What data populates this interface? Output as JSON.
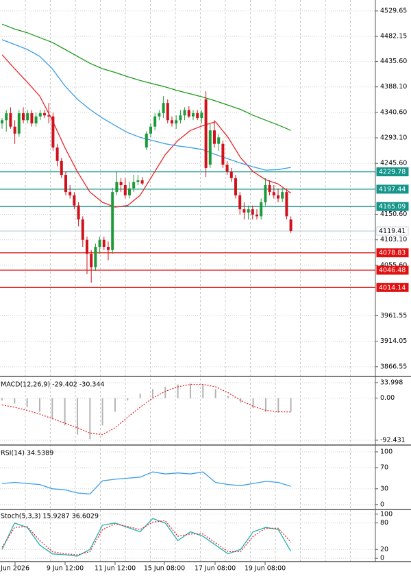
{
  "chart_data": [
    {
      "type": "candlestick",
      "up_color": "#1f9a3a",
      "down_color": "#d0121b",
      "ylim": [
        3849.7,
        4550
      ],
      "yticks": [
        4529.65,
        4482.15,
        {
          "value": 4435.6,
          "label": "4435.60"
        },
        {
          "value": 4388.1,
          "label": "4388.10"
        },
        {
          "value": 4340.6,
          "label": "4340.60"
        },
        {
          "value": 4293.1,
          "label": "4293.10"
        },
        {
          "value": 4245.6,
          "label": "4245.60"
        },
        {
          "value": 4150.6,
          "label": "4150.60"
        },
        {
          "value": 4103.1,
          "label": "4103.10"
        },
        {
          "value": 4055.6,
          "label": "4055.60"
        },
        3961.55,
        3914.05,
        3866.55
      ],
      "grid": true,
      "candles": [
        {
          "open": 4320,
          "high": 4330,
          "low": 4310,
          "close": 4326
        },
        {
          "open": 4326,
          "high": 4345,
          "low": 4305,
          "close": 4339
        },
        {
          "open": 4339,
          "high": 4350,
          "low": 4310,
          "close": 4314
        },
        {
          "open": 4314,
          "high": 4326,
          "low": 4282,
          "close": 4301
        },
        {
          "open": 4301,
          "high": 4345,
          "low": 4295,
          "close": 4339
        },
        {
          "open": 4339,
          "high": 4350,
          "low": 4320,
          "close": 4326
        },
        {
          "open": 4326,
          "high": 4345,
          "low": 4320,
          "close": 4339
        },
        {
          "open": 4339,
          "high": 4345,
          "low": 4314,
          "close": 4320
        },
        {
          "open": 4320,
          "high": 4340,
          "low": 4314,
          "close": 4333
        },
        {
          "open": 4333,
          "high": 4345,
          "low": 4326,
          "close": 4339
        },
        {
          "open": 4339,
          "high": 4345,
          "low": 4330,
          "close": 4335
        },
        {
          "open": 4335,
          "high": 4358,
          "low": 4320,
          "close": 4333
        },
        {
          "open": 4333,
          "high": 4340,
          "low": 4269,
          "close": 4275
        },
        {
          "open": 4275,
          "high": 4282,
          "low": 4240,
          "close": 4250
        },
        {
          "open": 4250,
          "high": 4256,
          "low": 4218,
          "close": 4224
        },
        {
          "open": 4224,
          "high": 4230,
          "low": 4186,
          "close": 4192
        },
        {
          "open": 4192,
          "high": 4205,
          "low": 4180,
          "close": 4186
        },
        {
          "open": 4186,
          "high": 4192,
          "low": 4160,
          "close": 4167
        },
        {
          "open": 4167,
          "high": 4173,
          "low": 4128,
          "close": 4141
        },
        {
          "open": 4141,
          "high": 4147,
          "low": 4090,
          "close": 4103
        },
        {
          "open": 4103,
          "high": 4109,
          "low": 4039,
          "close": 4077
        },
        {
          "open": 4077,
          "high": 4084,
          "low": 4023,
          "close": 4052
        },
        {
          "open": 4052,
          "high": 4096,
          "low": 4045,
          "close": 4090
        },
        {
          "open": 4090,
          "high": 4109,
          "low": 4077,
          "close": 4103
        },
        {
          "open": 4103,
          "high": 4109,
          "low": 4084,
          "close": 4090
        },
        {
          "open": 4090,
          "high": 4100,
          "low": 4065,
          "close": 4084
        },
        {
          "open": 4084,
          "high": 4200,
          "low": 4077,
          "close": 4192
        },
        {
          "open": 4192,
          "high": 4230,
          "low": 4186,
          "close": 4211
        },
        {
          "open": 4211,
          "high": 4218,
          "low": 4192,
          "close": 4205
        },
        {
          "open": 4205,
          "high": 4218,
          "low": 4180,
          "close": 4186
        },
        {
          "open": 4186,
          "high": 4211,
          "low": 4180,
          "close": 4199
        },
        {
          "open": 4199,
          "high": 4224,
          "low": 4192,
          "close": 4211
        },
        {
          "open": 4211,
          "high": 4224,
          "low": 4205,
          "close": 4214
        },
        {
          "open": 4214,
          "high": 4220,
          "low": 4205,
          "close": 4208
        },
        {
          "open": 4275,
          "high": 4305,
          "low": 4270,
          "close": 4301
        },
        {
          "open": 4301,
          "high": 4320,
          "low": 4294,
          "close": 4314
        },
        {
          "open": 4314,
          "high": 4339,
          "low": 4307,
          "close": 4333
        },
        {
          "open": 4333,
          "high": 4345,
          "low": 4326,
          "close": 4339
        },
        {
          "open": 4339,
          "high": 4371,
          "low": 4330,
          "close": 4358
        },
        {
          "open": 4358,
          "high": 4365,
          "low": 4320,
          "close": 4326
        },
        {
          "open": 4326,
          "high": 4333,
          "low": 4314,
          "close": 4320
        },
        {
          "open": 4320,
          "high": 4335,
          "low": 4310,
          "close": 4326
        },
        {
          "open": 4326,
          "high": 4345,
          "low": 4320,
          "close": 4335
        },
        {
          "open": 4335,
          "high": 4350,
          "low": 4326,
          "close": 4345
        },
        {
          "open": 4345,
          "high": 4352,
          "low": 4330,
          "close": 4333
        },
        {
          "open": 4333,
          "high": 4345,
          "low": 4326,
          "close": 4339
        },
        {
          "open": 4339,
          "high": 4345,
          "low": 4326,
          "close": 4330
        },
        {
          "open": 4330,
          "high": 4345,
          "low": 4320,
          "close": 4340
        },
        {
          "open": 4365,
          "high": 4380,
          "low": 4220,
          "close": 4237
        },
        {
          "open": 4243,
          "high": 4320,
          "low": 4237,
          "close": 4307
        },
        {
          "open": 4307,
          "high": 4326,
          "low": 4275,
          "close": 4282
        },
        {
          "open": 4282,
          "high": 4300,
          "low": 4269,
          "close": 4294
        },
        {
          "open": 4282,
          "high": 4288,
          "low": 4237,
          "close": 4243
        },
        {
          "open": 4243,
          "high": 4250,
          "low": 4224,
          "close": 4230
        },
        {
          "open": 4230,
          "high": 4237,
          "low": 4211,
          "close": 4218
        },
        {
          "open": 4218,
          "high": 4224,
          "low": 4180,
          "close": 4186
        },
        {
          "open": 4186,
          "high": 4192,
          "low": 4150,
          "close": 4160
        },
        {
          "open": 4160,
          "high": 4173,
          "low": 4141,
          "close": 4154
        },
        {
          "open": 4154,
          "high": 4167,
          "low": 4141,
          "close": 4160
        },
        {
          "open": 4160,
          "high": 4167,
          "low": 4141,
          "close": 4150
        },
        {
          "open": 4150,
          "high": 4160,
          "low": 4141,
          "close": 4147
        },
        {
          "open": 4147,
          "high": 4180,
          "low": 4141,
          "close": 4173
        },
        {
          "open": 4173,
          "high": 4218,
          "low": 4167,
          "close": 4205
        },
        {
          "open": 4205,
          "high": 4214,
          "low": 4186,
          "close": 4192
        },
        {
          "open": 4192,
          "high": 4205,
          "low": 4180,
          "close": 4186
        },
        {
          "open": 4186,
          "high": 4199,
          "low": 4173,
          "close": 4180
        },
        {
          "open": 4180,
          "high": 4200,
          "low": 4173,
          "close": 4192
        },
        {
          "open": 4192,
          "high": 4199,
          "low": 4141,
          "close": 4147
        },
        {
          "open": 4141,
          "high": 4147,
          "low": 4116,
          "close": 4119.41
        }
      ],
      "series": [
        {
          "color": "#e8262a",
          "values": [
            4448,
            4422,
            4397,
            4371,
            4326,
            4275,
            4230,
            4192,
            4173,
            4164,
            4167,
            4186,
            4224,
            4262,
            4288,
            4307,
            4316,
            4323,
            4294,
            4256,
            4230,
            4215,
            4207,
            4190
          ]
        },
        {
          "color": "#3a9de8",
          "values": [
            4476,
            4467,
            4458,
            4445,
            4422,
            4390,
            4365,
            4346,
            4330,
            4316,
            4303,
            4294,
            4288,
            4282,
            4278,
            4275,
            4271,
            4262,
            4254,
            4246,
            4239,
            4233,
            4234,
            4238
          ]
        },
        {
          "color": "#1c9a1c",
          "values": [
            4505,
            4496,
            4489,
            4480,
            4471,
            4458,
            4445,
            4432,
            4422,
            4415,
            4407,
            4400,
            4394,
            4388,
            4381,
            4375,
            4369,
            4362,
            4354,
            4346,
            4335,
            4326,
            4317,
            4307
          ]
        }
      ],
      "levels": [
        {
          "value": 4229.78,
          "color": "#14958a",
          "text_color": "#ffffff"
        },
        {
          "value": 4197.44,
          "color": "#14958a",
          "text_color": "#ffffff"
        },
        {
          "value": 4165.09,
          "color": "#14958a",
          "text_color": "#ffffff"
        },
        {
          "value": 4119.41,
          "color": "#c9d3e0",
          "text_color": "#000000"
        },
        {
          "value": 4078.83,
          "color": "#e01010",
          "text_color": "#ffffff"
        },
        {
          "value": 4046.48,
          "color": "#e01010",
          "text_color": "#ffffff"
        },
        {
          "value": 4014.14,
          "color": "#e01010",
          "text_color": "#ffffff"
        }
      ],
      "x_labels": [
        "Jun 2026",
        "9 Jun 12:00",
        "11 Jun 12:00",
        "15 Jun 08:00",
        "17 Jun 08:00",
        "19 Jun 08:00"
      ]
    },
    {
      "type": "macd",
      "title": "MACD(12,26,9) -29.402 -30.344",
      "ylim": [
        -101.5,
        43
      ],
      "yticks": [
        33.998,
        {
          "value": 0,
          "label": "0.00"
        },
        -92.431
      ],
      "series": [
        {
          "style": "bar",
          "color": "#b4b4b4",
          "values": [
            -5,
            -12,
            -20,
            -30,
            -45,
            -60,
            -80,
            -90,
            -60,
            -30,
            -5,
            10,
            20,
            25,
            30,
            32,
            30,
            20,
            5,
            -10,
            -22,
            -30,
            -32,
            -29.402
          ]
        },
        {
          "style": "dashed",
          "color": "#e8262a",
          "values": [
            -15,
            -20,
            -27,
            -35,
            -45,
            -55,
            -65,
            -77,
            -80,
            -65,
            -42,
            -20,
            0,
            15,
            25,
            30,
            30,
            25,
            12,
            -5,
            -18,
            -27,
            -30,
            -30.344
          ]
        }
      ]
    },
    {
      "type": "line",
      "title": "RSI(14) 34.5389",
      "ylim": [
        -8,
        109
      ],
      "yticks": [
        100,
        70,
        30,
        0
      ],
      "series": [
        {
          "style": "solid",
          "color": "#3a9de8",
          "values": [
            40,
            42,
            40,
            38,
            30,
            28,
            22,
            20,
            45,
            48,
            50,
            52,
            62,
            58,
            60,
            58,
            62,
            42,
            38,
            36,
            40,
            44,
            42,
            34.5389
          ]
        }
      ]
    },
    {
      "type": "line",
      "title": "Stoch(5,3,3) 15.9287 36.6029",
      "ylim": [
        -6,
        109
      ],
      "yticks": [
        100,
        80,
        20,
        0
      ],
      "series": [
        {
          "style": "solid",
          "color": "#20b0b0",
          "values": [
            20,
            80,
            70,
            30,
            10,
            8,
            5,
            20,
            75,
            80,
            70,
            60,
            90,
            80,
            40,
            60,
            50,
            30,
            10,
            20,
            60,
            70,
            65,
            15.9287
          ]
        },
        {
          "style": "dashed",
          "color": "#e8262a",
          "values": [
            25,
            70,
            72,
            40,
            15,
            10,
            8,
            15,
            65,
            78,
            72,
            65,
            82,
            85,
            50,
            55,
            55,
            35,
            15,
            15,
            50,
            68,
            68,
            36.6029
          ]
        }
      ]
    }
  ]
}
